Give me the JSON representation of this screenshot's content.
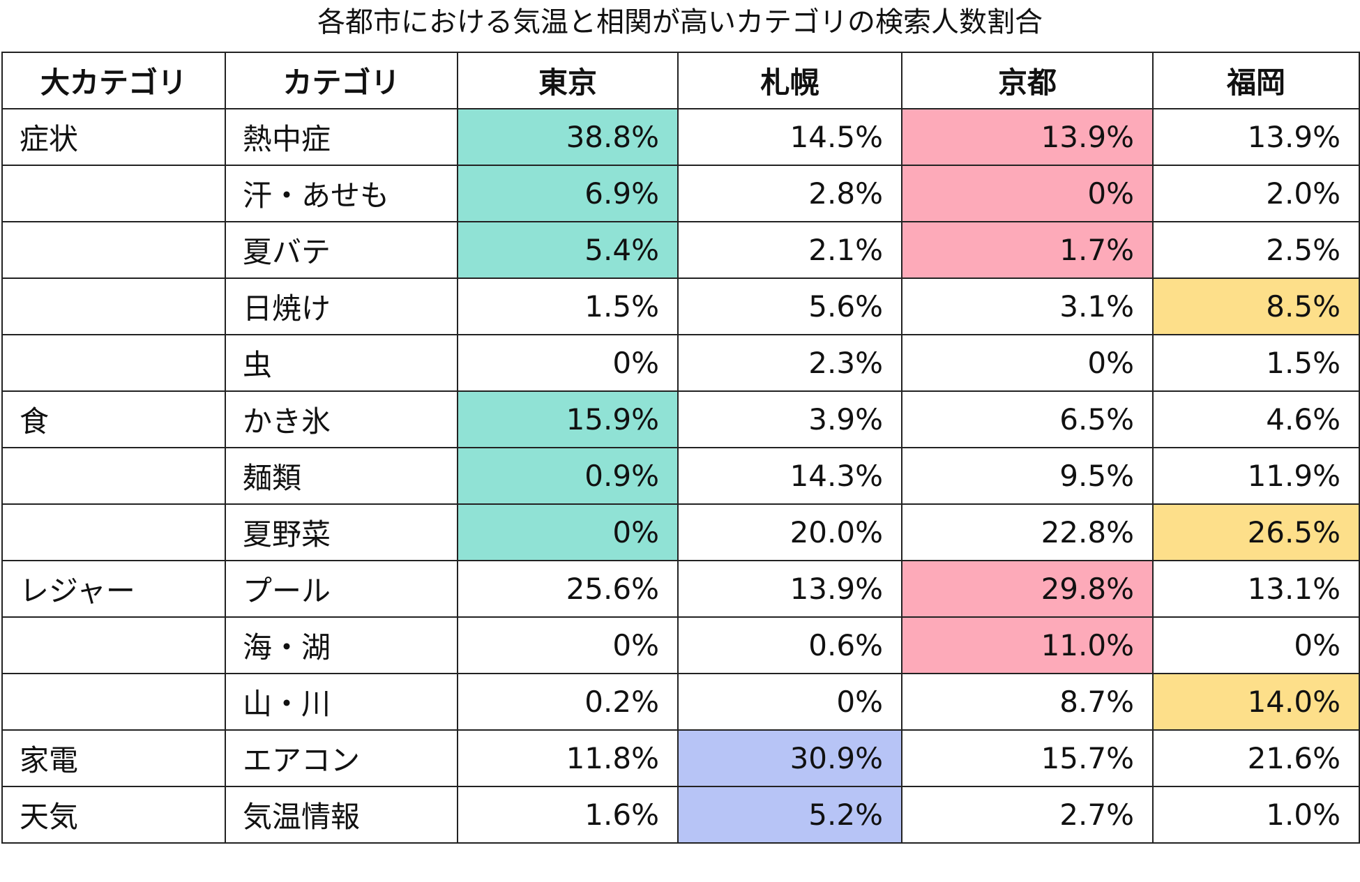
{
  "title": "各都市における気温と相関が高いカテゴリの検索人数割合",
  "headers": [
    "大カテゴリ",
    "カテゴリ",
    "東京",
    "札幌",
    "京都",
    "福岡"
  ],
  "highlight_colors": {
    "tokyo": "#90e2d5",
    "sapporo": "#b7c4f6",
    "kyoto": "#fdaab9",
    "fukuoka": "#fddf8a"
  },
  "rows": [
    {
      "group": "症状",
      "category": "熱中症",
      "values": [
        "38.8%",
        "14.5%",
        "13.9%",
        "13.9%"
      ],
      "highlight": [
        "tokyo",
        null,
        "kyoto",
        null
      ]
    },
    {
      "group": "",
      "category": "汗・あせも",
      "values": [
        "6.9%",
        "2.8%",
        "0%",
        "2.0%"
      ],
      "highlight": [
        "tokyo",
        null,
        "kyoto",
        null
      ]
    },
    {
      "group": "",
      "category": "夏バテ",
      "values": [
        "5.4%",
        "2.1%",
        "1.7%",
        "2.5%"
      ],
      "highlight": [
        "tokyo",
        null,
        "kyoto",
        null
      ]
    },
    {
      "group": "",
      "category": "日焼け",
      "values": [
        "1.5%",
        "5.6%",
        "3.1%",
        "8.5%"
      ],
      "highlight": [
        null,
        null,
        null,
        "fukuoka"
      ]
    },
    {
      "group": "",
      "category": "虫",
      "values": [
        "0%",
        "2.3%",
        "0%",
        "1.5%"
      ],
      "highlight": [
        null,
        null,
        null,
        null
      ]
    },
    {
      "group": "食",
      "category": "かき氷",
      "values": [
        "15.9%",
        "3.9%",
        "6.5%",
        "4.6%"
      ],
      "highlight": [
        "tokyo",
        null,
        null,
        null
      ]
    },
    {
      "group": "",
      "category": "麺類",
      "values": [
        "0.9%",
        "14.3%",
        "9.5%",
        "11.9%"
      ],
      "highlight": [
        "tokyo",
        null,
        null,
        null
      ]
    },
    {
      "group": "",
      "category": "夏野菜",
      "values": [
        "0%",
        "20.0%",
        "22.8%",
        "26.5%"
      ],
      "highlight": [
        "tokyo",
        null,
        null,
        "fukuoka"
      ]
    },
    {
      "group": "レジャー",
      "category": "プール",
      "values": [
        "25.6%",
        "13.9%",
        "29.8%",
        "13.1%"
      ],
      "highlight": [
        null,
        null,
        "kyoto",
        null
      ]
    },
    {
      "group": "",
      "category": "海・湖",
      "values": [
        "0%",
        "0.6%",
        "11.0%",
        "0%"
      ],
      "highlight": [
        null,
        null,
        "kyoto",
        null
      ]
    },
    {
      "group": "",
      "category": "山・川",
      "values": [
        "0.2%",
        "0%",
        "8.7%",
        "14.0%"
      ],
      "highlight": [
        null,
        null,
        null,
        "fukuoka"
      ]
    },
    {
      "group": "家電",
      "category": "エアコン",
      "values": [
        "11.8%",
        "30.9%",
        "15.7%",
        "21.6%"
      ],
      "highlight": [
        null,
        "sapporo",
        null,
        null
      ]
    },
    {
      "group": "天気",
      "category": "気温情報",
      "values": [
        "1.6%",
        "5.2%",
        "2.7%",
        "1.0%"
      ],
      "highlight": [
        null,
        "sapporo",
        null,
        null
      ]
    }
  ]
}
